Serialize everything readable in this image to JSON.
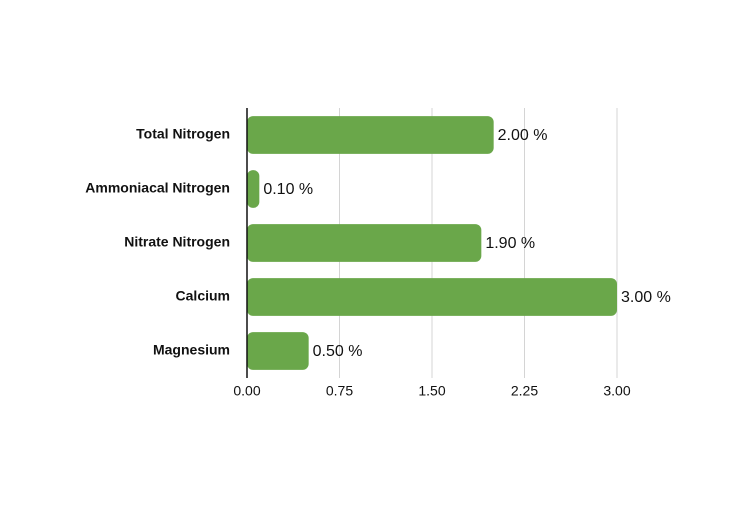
{
  "chart_data": {
    "type": "bar",
    "orientation": "horizontal",
    "categories": [
      "Total Nitrogen",
      "Ammoniacal Nitrogen",
      "Nitrate Nitrogen",
      "Calcium",
      "Magnesium"
    ],
    "values": [
      2.0,
      0.1,
      1.9,
      3.0,
      0.5
    ],
    "value_labels": [
      "2.00 %",
      "0.10 %",
      "1.90 %",
      "3.00 %",
      "0.50 %"
    ],
    "color": "#6aa74a",
    "xlim": [
      0,
      3
    ],
    "xticks": [
      {
        "value": 0,
        "label": "0.00"
      },
      {
        "value": 0.75,
        "label": "0.75"
      },
      {
        "value": 1.5,
        "label": "1.50"
      },
      {
        "value": 2.25,
        "label": "2.25"
      },
      {
        "value": 3,
        "label": "3.00"
      }
    ],
    "grid": true
  }
}
